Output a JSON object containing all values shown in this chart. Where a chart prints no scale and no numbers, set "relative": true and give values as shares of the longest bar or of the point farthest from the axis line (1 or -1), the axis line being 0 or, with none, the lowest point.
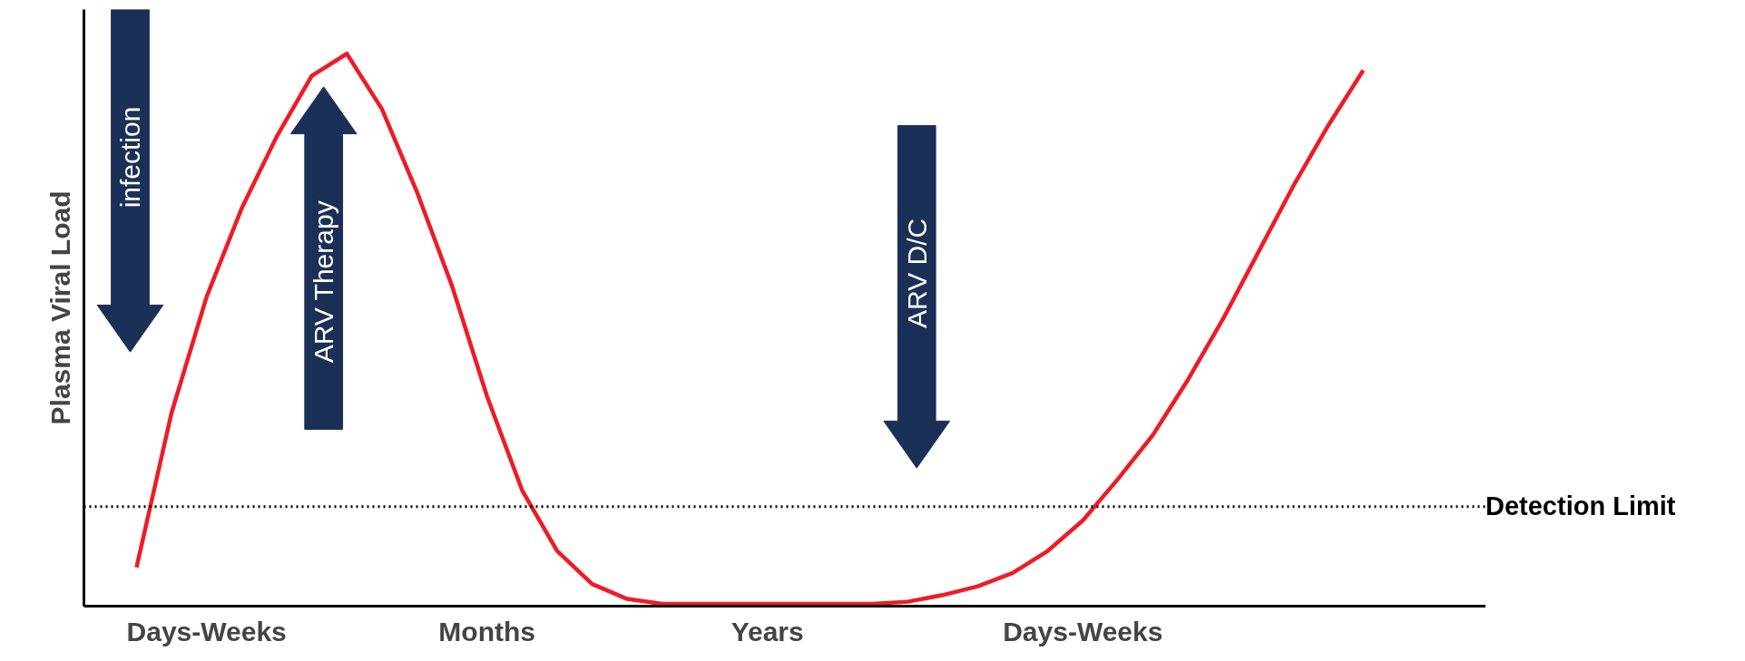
{
  "chart_data": {
    "type": "line",
    "relative": true,
    "ylabel": "Plasma Viral Load",
    "categories": [
      null,
      null,
      "Days-Weeks",
      null,
      null,
      null,
      null,
      null,
      null,
      null,
      "Months",
      null,
      null,
      null,
      null,
      null,
      null,
      null,
      "Years",
      null,
      null,
      null,
      null,
      null,
      null,
      null,
      null,
      "Days-Weeks",
      null,
      null,
      null,
      null,
      null,
      null,
      null,
      null
    ],
    "series": [
      {
        "color": "#ee1c25",
        "values": [
          0.07,
          0.35,
          0.56,
          0.72,
          0.85,
          0.96,
          1.0,
          0.9,
          0.75,
          0.58,
          0.38,
          0.21,
          0.1,
          0.04,
          0.013,
          0.004,
          0.004,
          0.004,
          0.004,
          0.004,
          0.004,
          0.004,
          0.008,
          0.02,
          0.036,
          0.06,
          0.1,
          0.155,
          0.23,
          0.31,
          0.41,
          0.52,
          0.64,
          0.76,
          0.87,
          0.97
        ]
      }
    ],
    "ref_lines": [
      {
        "axis": "y",
        "value": 0.18,
        "label": "Detection Limit",
        "line_style": "dotted",
        "color": "#000000"
      }
    ],
    "annotations": [
      "infection",
      "ARV Therapy",
      "ARV D/C"
    ],
    "grid": false,
    "line_style": "solid",
    "marker": "none"
  }
}
